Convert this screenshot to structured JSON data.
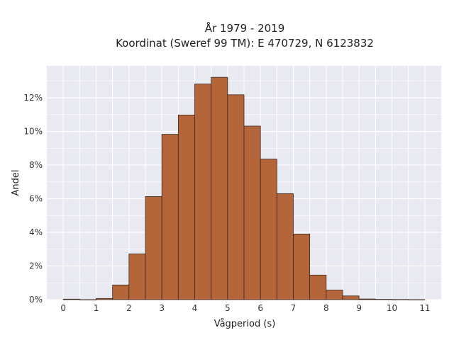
{
  "colors": {
    "plot_background": "#E9E9F1",
    "grid": "#FFFFFF",
    "bar_fill": "#B5653A",
    "bar_edge": "#3A2A20"
  },
  "chart_data": {
    "type": "bar",
    "title_line1": "År 1979 - 2019",
    "title_line2": "Koordinat (Sweref 99 TM): E 470729, N 6123832",
    "xlabel": "Vågperiod (s)",
    "ylabel": "Andel",
    "xlim": [
      -0.5,
      11.5
    ],
    "ylim": [
      0,
      0.139
    ],
    "x_ticks": [
      0,
      1,
      2,
      3,
      4,
      5,
      6,
      7,
      8,
      9,
      10,
      11
    ],
    "x_tick_labels": [
      "0",
      "1",
      "2",
      "3",
      "4",
      "5",
      "6",
      "7",
      "8",
      "9",
      "10",
      "11"
    ],
    "y_ticks": [
      0,
      0.02,
      0.04,
      0.06,
      0.08,
      0.1,
      0.12
    ],
    "y_tick_labels": [
      "0%",
      "2%",
      "4%",
      "6%",
      "8%",
      "10%",
      "12%"
    ],
    "bin_width": 0.5,
    "bin_starts": [
      0,
      0.5,
      1,
      1.5,
      2,
      2.5,
      3,
      3.5,
      4,
      4.5,
      5,
      5.5,
      6,
      6.5,
      7,
      7.5,
      8,
      8.5,
      9,
      9.5,
      10,
      10.5
    ],
    "values": [
      0.0003,
      0.0,
      0.0007,
      0.0087,
      0.0272,
      0.0613,
      0.0983,
      0.1098,
      0.1282,
      0.1322,
      0.1218,
      0.1032,
      0.0836,
      0.063,
      0.039,
      0.0146,
      0.0057,
      0.0022,
      0.0004,
      0.0002,
      0.0001,
      0.0
    ],
    "grid": true,
    "legend": "none"
  }
}
